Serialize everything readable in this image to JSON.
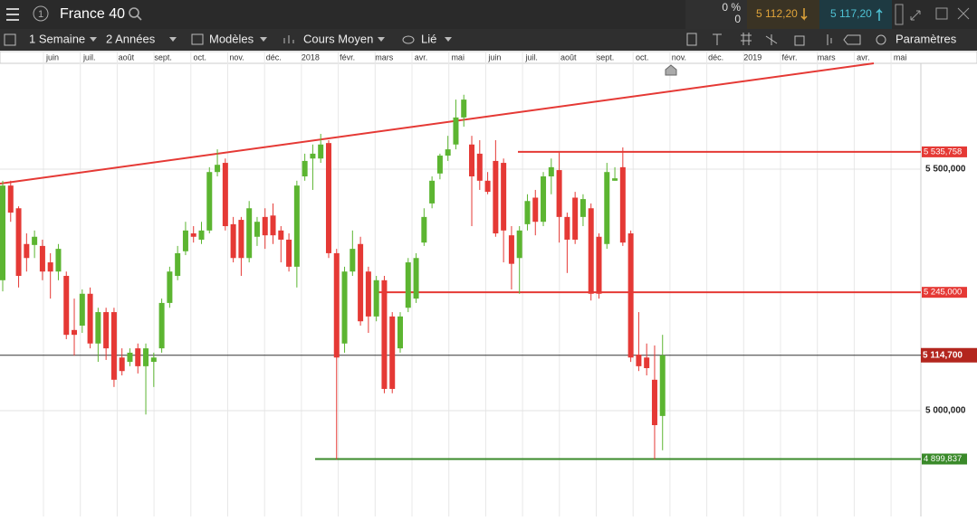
{
  "header": {
    "instrument": "France 40",
    "change_pct": "0 %",
    "change": "0",
    "bid": "5 112,20",
    "ask": "5 117,20"
  },
  "toolbar": {
    "interval": "1 Semaine",
    "range": "2 Années",
    "templates": "Modèles",
    "price_type": "Cours Moyen",
    "link": "Lié",
    "settings": "Paramètres"
  },
  "chart_data": {
    "type": "candlestick",
    "up_color": "#5cb531",
    "down_color": "#e53935",
    "xtick_labels": [
      "juin",
      "juil.",
      "août",
      "sept.",
      "oct.",
      "nov.",
      "déc.",
      "2018",
      "févr.",
      "mars",
      "avr.",
      "mai",
      "juin",
      "juil.",
      "août",
      "sept.",
      "oct.",
      "nov.",
      "déc.",
      "2019",
      "févr.",
      "mars",
      "avr.",
      "mai"
    ],
    "open": [
      5270,
      5466,
      5419,
      5345,
      5343,
      5341,
      5307,
      5288,
      5279,
      5167,
      5176,
      5242,
      5139,
      5204,
      5204,
      5110,
      5101,
      5129,
      5092,
      5101,
      5129,
      5223,
      5279,
      5330,
      5367,
      5354,
      5373,
      5494,
      5513,
      5386,
      5395,
      5316,
      5360,
      5401,
      5404,
      5373,
      5354,
      5298,
      5485,
      5522,
      5522,
      5554,
      5326,
      5139,
      5288,
      5345,
      5288,
      5195,
      5270,
      5195,
      5129,
      5213,
      5232,
      5348,
      5429,
      5491,
      5528,
      5551,
      5607,
      5551,
      5532,
      5476,
      5517,
      5513,
      5363,
      5316,
      5386,
      5441,
      5391,
      5485,
      5498,
      5401,
      5441,
      5401,
      5419,
      5360,
      5345,
      5476,
      5504,
      5367,
      5116,
      5110,
      5064,
      4989
    ],
    "high": [
      5476,
      5476,
      5423,
      5367,
      5373,
      5354,
      5326,
      5345,
      5288,
      5232,
      5251,
      5255,
      5213,
      5213,
      5213,
      5129,
      5129,
      5139,
      5139,
      5120,
      5232,
      5298,
      5341,
      5391,
      5382,
      5391,
      5504,
      5541,
      5522,
      5401,
      5401,
      5434,
      5401,
      5419,
      5429,
      5382,
      5367,
      5476,
      5532,
      5551,
      5573,
      5560,
      5335,
      5298,
      5373,
      5360,
      5298,
      5279,
      5279,
      5204,
      5204,
      5316,
      5326,
      5419,
      5485,
      5532,
      5569,
      5644,
      5654,
      5569,
      5560,
      5494,
      5560,
      5522,
      5382,
      5382,
      5448,
      5457,
      5494,
      5522,
      5535,
      5410,
      5453,
      5448,
      5429,
      5367,
      5513,
      5504,
      5545,
      5373,
      5204,
      5139,
      5135,
      5157
    ],
    "low": [
      5247,
      5391,
      5255,
      5288,
      5316,
      5270,
      5232,
      5270,
      5148,
      5114,
      5161,
      5129,
      5101,
      5105,
      5049,
      5073,
      5092,
      5077,
      4992,
      5049,
      5120,
      5213,
      5270,
      5322,
      5348,
      5345,
      5367,
      5485,
      5373,
      5307,
      5279,
      5307,
      5341,
      5335,
      5345,
      5307,
      5288,
      5255,
      5476,
      5457,
      5513,
      5316,
      4899,
      5120,
      5279,
      5176,
      5161,
      5185,
      5036,
      5036,
      5120,
      5204,
      5223,
      5341,
      5419,
      5479,
      5517,
      5541,
      5588,
      5382,
      5457,
      5448,
      5360,
      5307,
      5251,
      5242,
      5373,
      5363,
      5382,
      5448,
      5348,
      5285,
      5345,
      5382,
      5228,
      5232,
      5335,
      5476,
      5341,
      5101,
      5082,
      5073,
      4899,
      4918
    ],
    "close": [
      5466,
      5410,
      5279,
      5316,
      5360,
      5288,
      5288,
      5335,
      5157,
      5157,
      5242,
      5139,
      5204,
      5129,
      5064,
      5082,
      5120,
      5092,
      5129,
      5110,
      5223,
      5288,
      5326,
      5373,
      5360,
      5373,
      5494,
      5509,
      5382,
      5316,
      5316,
      5419,
      5391,
      5363,
      5363,
      5354,
      5298,
      5466,
      5517,
      5532,
      5551,
      5326,
      5110,
      5288,
      5335,
      5185,
      5195,
      5270,
      5045,
      5045,
      5195,
      5307,
      5316,
      5401,
      5476,
      5528,
      5541,
      5607,
      5644,
      5485,
      5476,
      5453,
      5367,
      5373,
      5304,
      5373,
      5434,
      5391,
      5485,
      5504,
      5401,
      5354,
      5354,
      5438,
      5242,
      5242,
      5494,
      5481,
      5348,
      5110,
      5092,
      5088,
      4970,
      5114.7
    ],
    "ylim": [
      4780.9,
      5719.1
    ],
    "yticks": [
      {
        "value": 5500,
        "label": "5 500,000"
      },
      {
        "value": 5000,
        "label": "5 000,000"
      }
    ],
    "levels": [
      {
        "value": 5535.758,
        "label": "5 535,758",
        "color": "#e53935"
      },
      {
        "value": 5245,
        "label": "5 245,000",
        "color": "#e53935"
      },
      {
        "value": 4899.837,
        "label": "4 899,837",
        "color": "#3a8a2a"
      }
    ],
    "current": {
      "value": 5114.7,
      "label": "5 114,700",
      "color": "#b3261e"
    }
  }
}
